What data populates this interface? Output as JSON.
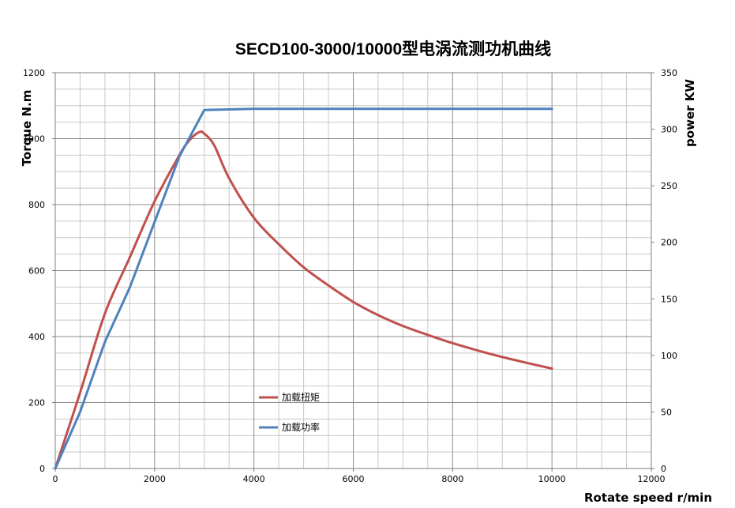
{
  "chart_data": {
    "type": "line",
    "title": "SECD100-3000/10000型电涡流测功机曲线",
    "xlabel": "Rotate speed r/min",
    "ylabel_left": "Torque N.m",
    "ylabel_right": "power KW",
    "xlim": [
      0,
      12000
    ],
    "ylim_left": [
      0,
      1200
    ],
    "ylim_right": [
      0,
      350
    ],
    "x_ticks": [
      "0",
      "2000",
      "4000",
      "6000",
      "8000",
      "10000",
      "12000"
    ],
    "y_left_ticks": [
      "0",
      "200",
      "400",
      "600",
      "800",
      "1000",
      "1200"
    ],
    "y_right_ticks": [
      "0",
      "50",
      "100",
      "150",
      "200",
      "250",
      "300",
      "350"
    ],
    "grid": true,
    "legend_position": "lower-center",
    "series": [
      {
        "name": "加载扭矩",
        "axis": "left",
        "color": "#c0504d",
        "x": [
          0,
          500,
          1000,
          1500,
          2000,
          2500,
          2700,
          2900,
          3000,
          3200,
          3500,
          4000,
          4500,
          5000,
          5500,
          6000,
          6500,
          7000,
          7500,
          8000,
          8500,
          9000,
          9500,
          10000
        ],
        "y": [
          0,
          230,
          470,
          640,
          810,
          950,
          995,
          1020,
          1015,
          980,
          880,
          760,
          680,
          610,
          555,
          505,
          465,
          432,
          405,
          380,
          358,
          338,
          320,
          303
        ]
      },
      {
        "name": "加载功率",
        "axis": "right",
        "color": "#4f81bd",
        "x": [
          0,
          500,
          1000,
          1500,
          2000,
          2500,
          3000,
          4000,
          5000,
          6000,
          7000,
          8000,
          9000,
          10000
        ],
        "y": [
          0,
          50,
          112,
          160,
          218,
          276,
          317,
          318,
          318,
          318,
          318,
          318,
          318,
          318
        ]
      }
    ]
  }
}
